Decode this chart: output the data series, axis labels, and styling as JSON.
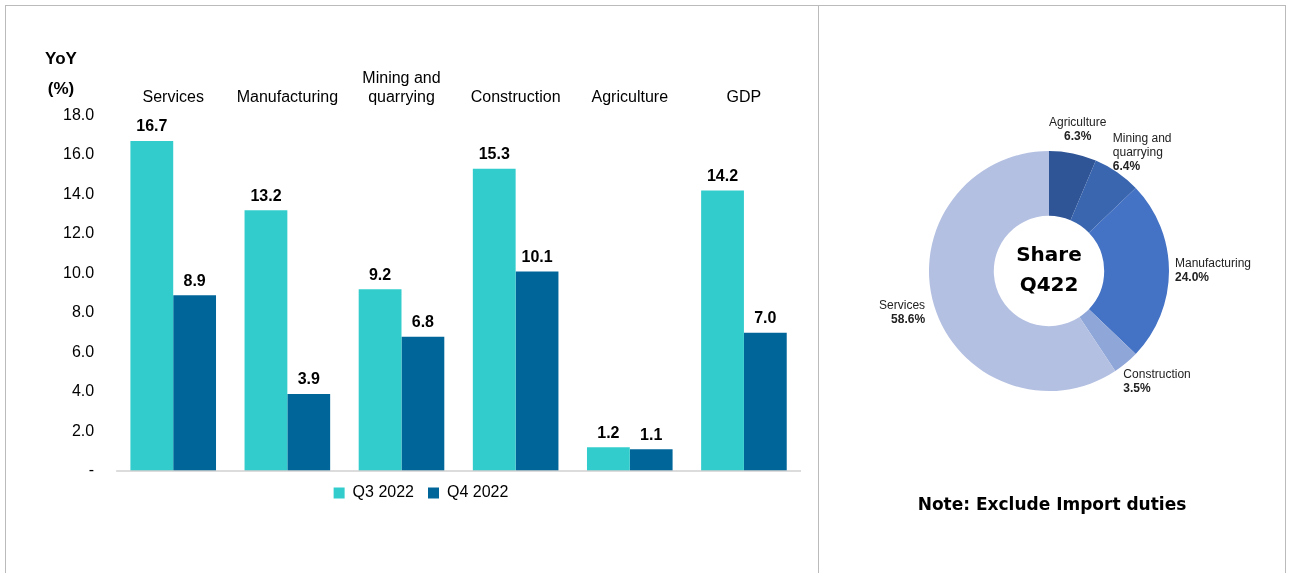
{
  "chart_data": [
    {
      "type": "bar",
      "ylabel": "YoY (%)",
      "categories": [
        "Services",
        "Manufacturing",
        "Mining and quarrying",
        "Construction",
        "Agriculture",
        "GDP"
      ],
      "series": [
        {
          "name": "Q3 2022",
          "color": "#33cccc",
          "values": [
            16.7,
            13.2,
            9.2,
            15.3,
            1.2,
            14.2
          ],
          "value_labels": [
            "16.7",
            "13.2",
            "9.2",
            "15.3",
            "1.2",
            "14.2"
          ]
        },
        {
          "name": "Q4 2022",
          "color": "#006699",
          "values": [
            8.9,
            3.9,
            6.8,
            10.1,
            1.1,
            7.0
          ],
          "value_labels": [
            "8.9",
            "3.9",
            "6.8",
            "10.1",
            "1.1",
            "7.0"
          ]
        }
      ],
      "ylim": [
        0,
        18
      ],
      "yticks": [
        {
          "value": 0,
          "label": "-"
        },
        {
          "value": 2,
          "label": "2.0"
        },
        {
          "value": 4,
          "label": "4.0"
        },
        {
          "value": 6,
          "label": "6.0"
        },
        {
          "value": 8,
          "label": "8.0"
        },
        {
          "value": 10,
          "label": "10.0"
        },
        {
          "value": 12,
          "label": "12.0"
        },
        {
          "value": 14,
          "label": "14.0"
        },
        {
          "value": 16,
          "label": "16.0"
        },
        {
          "value": 18,
          "label": "18.0"
        }
      ],
      "grid": false,
      "legend": "bottom"
    },
    {
      "type": "donut",
      "title": "Share Q422",
      "categories": [
        "Agriculture",
        "Mining and quarrying",
        "Manufacturing",
        "Construction",
        "Services"
      ],
      "values": [
        6.3,
        6.4,
        24.0,
        3.5,
        58.6
      ],
      "value_labels": [
        "6.3%",
        "6.4%",
        "24.0%",
        "3.5%",
        "58.6%"
      ],
      "colors": [
        "#2f5597",
        "#3a66b0",
        "#4472c4",
        "#8fa6d8",
        "#b4c0e2"
      ],
      "legend": false,
      "annotations": [
        "Note: Exclude Import duties"
      ]
    }
  ]
}
